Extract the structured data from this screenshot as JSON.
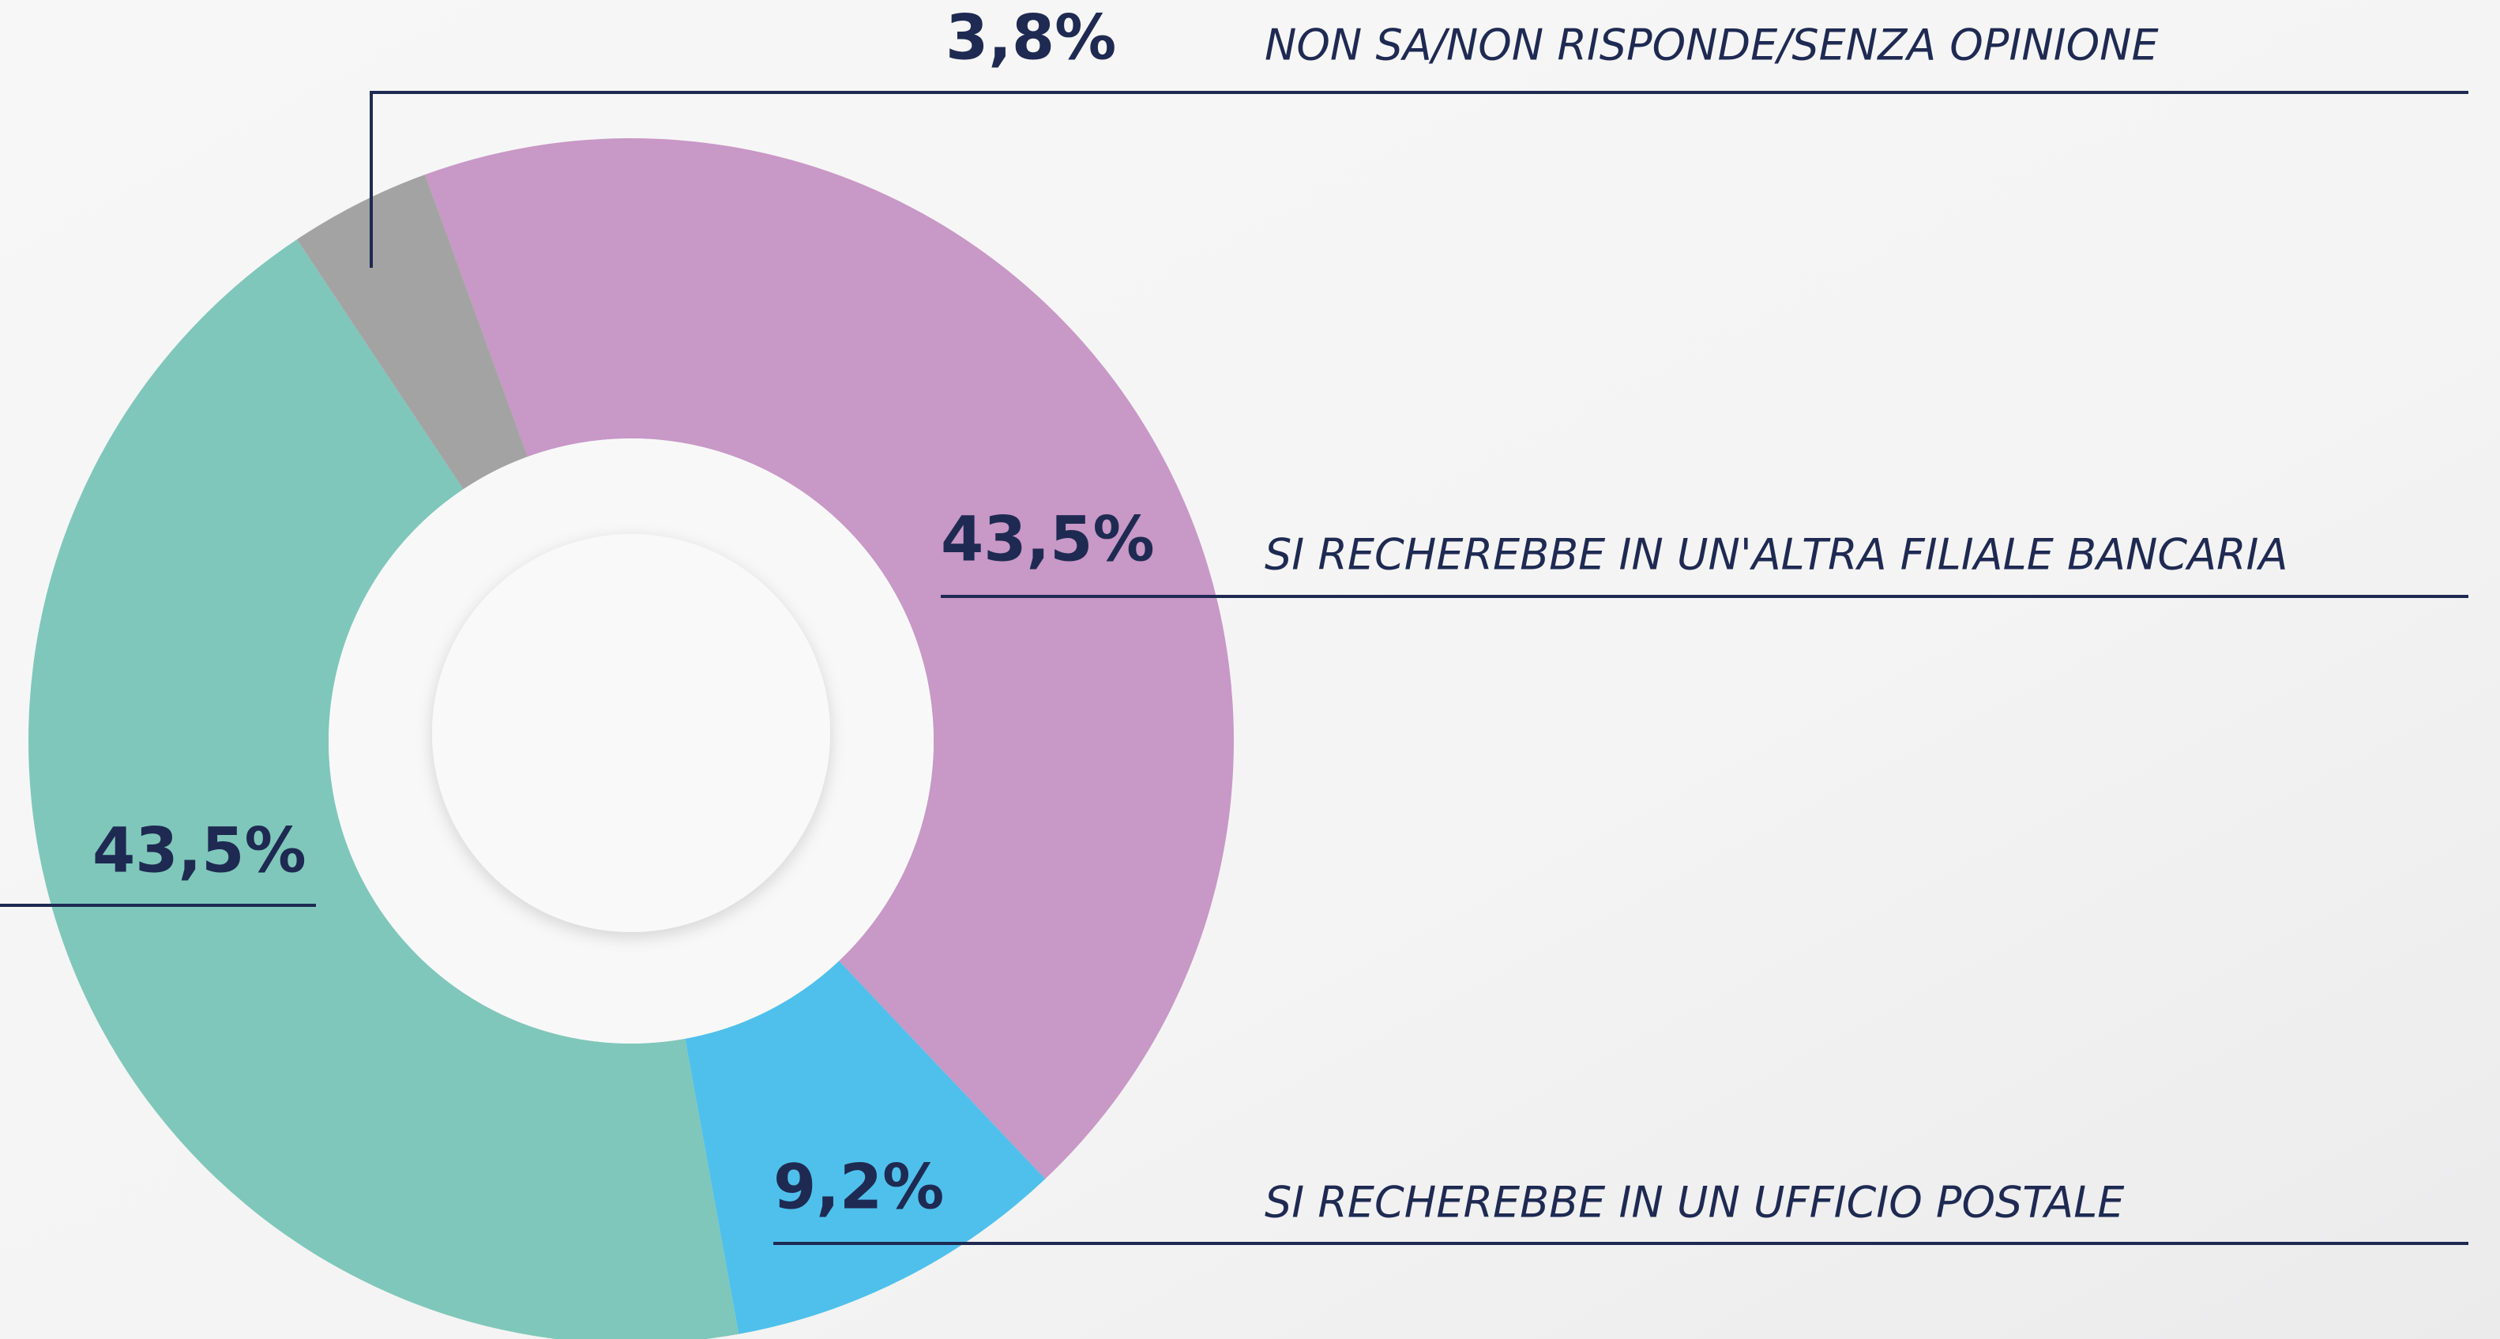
{
  "chart_data": {
    "type": "donut",
    "categories": [
      "SI RECHEREBBE IN UN'ALTRA FILIALE BANCARIA",
      "SI RECHEREBBE IN UN UFFICIO POSTALE",
      null,
      "NON SA/NON RISPONDE/SENZA OPINIONE"
    ],
    "values": [
      43.5,
      9.2,
      43.5,
      3.8
    ],
    "value_labels": [
      "43,5%",
      "9,2%",
      "43,5%",
      "3,8%"
    ],
    "colors": [
      "#c898c6",
      "#4fc0eb",
      "#7fc7ba",
      "#a3a3a3"
    ]
  }
}
